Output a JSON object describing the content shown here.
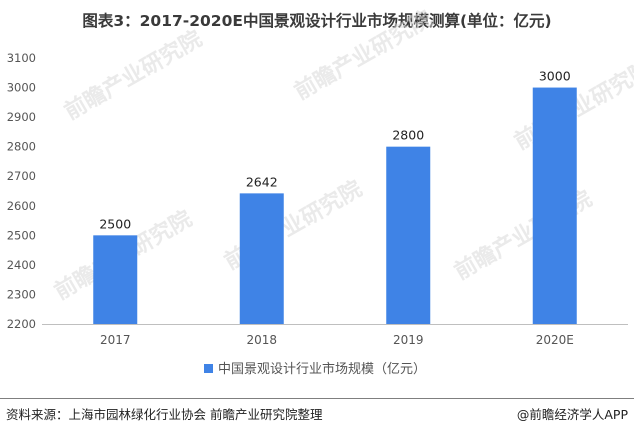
{
  "title": "图表3：2017-2020E中国景观设计行业市场规模测算(单位：亿元)",
  "source": "资料来源：上海市园林绿化行业协会 前瞻产业研究院整理",
  "brand": "@前瞻经济学人APP",
  "watermark": "前瞻产业研究院",
  "colors": {
    "bar": "#3f83e6",
    "axis_text": "#555555",
    "label_text": "#222222"
  },
  "chart_data": {
    "type": "bar",
    "title": "图表3：2017-2020E中国景观设计行业市场规模测算(单位：亿元)",
    "categories": [
      "2017",
      "2018",
      "2019",
      "2020E"
    ],
    "series": [
      {
        "name": "中国景观设计行业市场规模（亿元）",
        "values": [
          2500,
          2642,
          2800,
          3000
        ]
      }
    ],
    "data_labels": [
      "2500",
      "2642",
      "2800",
      "3000"
    ],
    "ylim": [
      2200,
      3100
    ],
    "yticks": [
      2200,
      2300,
      2400,
      2500,
      2600,
      2700,
      2800,
      2900,
      3000,
      3100
    ],
    "grid": false,
    "legend_position": "bottom"
  }
}
